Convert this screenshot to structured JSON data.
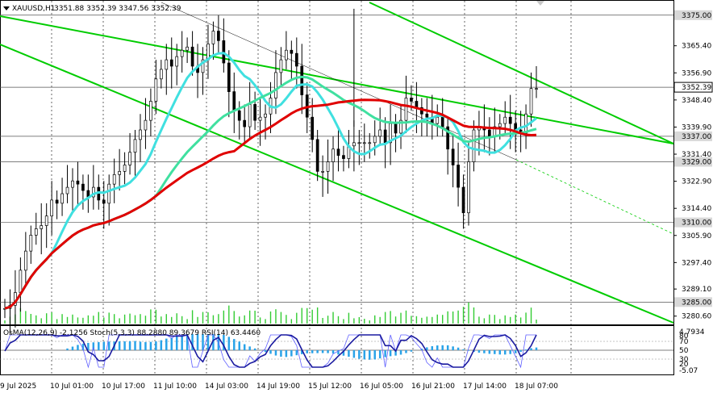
{
  "header": {
    "symbol": "XAUUSD,H1",
    "ohlc": "3351.88 3352.39 3347.56 3352.39"
  },
  "price_axis": {
    "ticks": [
      "3365.40",
      "3356.90",
      "3348.40",
      "3339.90",
      "3331.40",
      "3322.90",
      "3314.40",
      "3305.90",
      "3297.40",
      "3289.10",
      "3280.60"
    ],
    "tick_values": [
      3365.4,
      3356.9,
      3348.4,
      3339.9,
      3331.4,
      3322.9,
      3314.4,
      3305.9,
      3297.4,
      3289.1,
      3280.6
    ],
    "levels": [
      {
        "label": "3375.00",
        "value": 3375.0,
        "kind": "level"
      },
      {
        "label": "3352.39",
        "value": 3352.39,
        "kind": "current"
      },
      {
        "label": "3337.00",
        "value": 3337.0,
        "kind": "level"
      },
      {
        "label": "3329.00",
        "value": 3329.0,
        "kind": "level"
      },
      {
        "label": "3310.00",
        "value": 3310.0,
        "kind": "level"
      },
      {
        "label": "3285.00",
        "value": 3285.0,
        "kind": "level"
      }
    ],
    "range": [
      3278.0,
      3379.5
    ]
  },
  "time_axis": {
    "labels": [
      "9 Jul 2025",
      "10 Jul 01:00",
      "10 Jul 17:00",
      "11 Jul 10:00",
      "14 Jul 03:00",
      "14 Jul 19:00",
      "15 Jul 12:00",
      "16 Jul 05:00",
      "16 Jul 21:00",
      "17 Jul 14:00",
      "18 Jul 07:00"
    ]
  },
  "indicator": {
    "title": "OsMA(12,26,9) -2.1256  Stoch(5,3,3) 88.2880 89.3679  RSI(14) 63.4460",
    "scale_labels": [
      "4.7934",
      "80",
      "70",
      "50",
      "30",
      "20",
      "-5.07"
    ],
    "scale_values": [
      4.7934,
      80,
      70,
      50,
      30,
      20,
      -5.07
    ]
  },
  "colors": {
    "background": "#ffffff",
    "grid": "#000000",
    "candle": "#000000",
    "ma_fast": "#40e0e0",
    "ma_mid": "#40e0a0",
    "ma_slow": "#e00000",
    "channel": "#00cc00",
    "volume": "#33cc33",
    "osma": "#2aa3e8",
    "stoch_main": "#1a1aa0",
    "stoch_signal": "#6060ff",
    "rsi": "#8080c0"
  },
  "chart_data": {
    "type": "candlestick",
    "symbol": "XAUUSD",
    "timeframe": "H1",
    "ylim": [
      3278.0,
      3379.5
    ],
    "closes": [
      3283,
      3284,
      3288,
      3295,
      3301,
      3306,
      3308,
      3309,
      3312,
      3317,
      3316,
      3319,
      3321,
      3323,
      3322,
      3320,
      3318,
      3321,
      3317,
      3316,
      3322,
      3325,
      3326,
      3328,
      3332,
      3336,
      3339,
      3342,
      3348,
      3355,
      3358,
      3361,
      3359,
      3362,
      3364,
      3365,
      3359,
      3357,
      3361,
      3366,
      3370,
      3367,
      3360,
      3351,
      3345,
      3342,
      3340,
      3347,
      3342,
      3343,
      3344,
      3349,
      3357,
      3361,
      3364,
      3363,
      3359,
      3350,
      3343,
      3336,
      3326,
      3326,
      3329,
      3333,
      3331,
      3330,
      3334,
      3335,
      3335,
      3335,
      3335,
      3337,
      3339,
      3335,
      3341,
      3338,
      3342,
      3349,
      3348,
      3346,
      3344,
      3343,
      3341,
      3343,
      3340,
      3333,
      3328,
      3321,
      3313,
      3329,
      3339,
      3340,
      3339,
      3337,
      3340,
      3341,
      3343,
      3341,
      3339,
      3338,
      3344,
      3352,
      3352
    ]
  }
}
